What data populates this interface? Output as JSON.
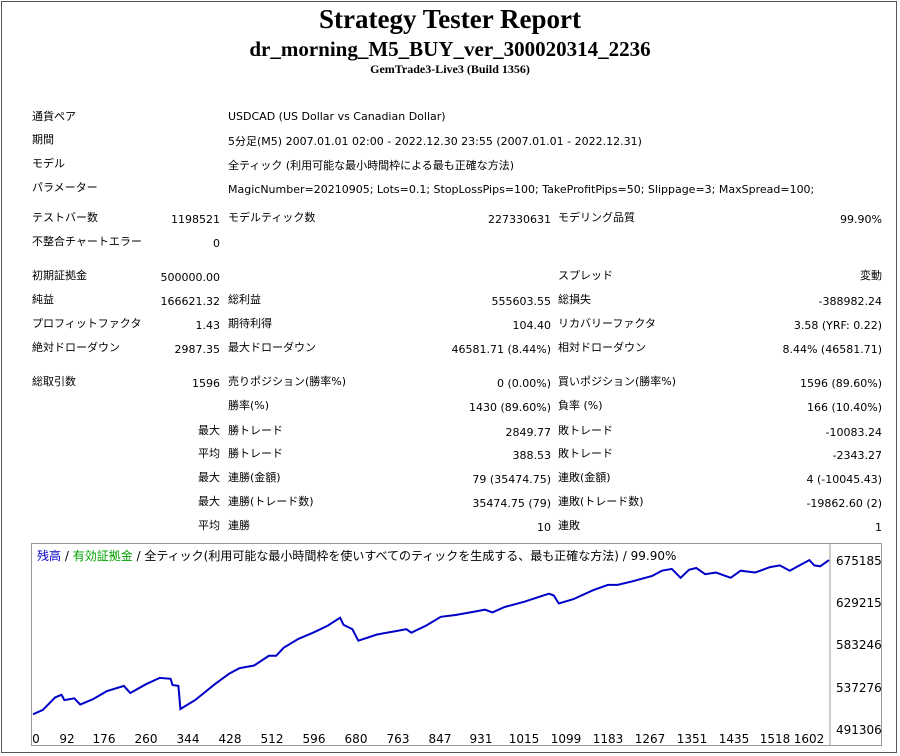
{
  "report": {
    "title": "Strategy Tester Report",
    "ea_name": "dr_morning_M5_BUY_ver_300020314_2236",
    "server": "GemTrade3-Live3 (Build 1356)"
  },
  "settings": [
    {
      "label": "通貨ペア",
      "value": "USDCAD (US Dollar vs Canadian Dollar)"
    },
    {
      "label": "期間",
      "value": "5分足(M5) 2007.01.01 02:00 - 2022.12.30 23:55 (2007.01.01 - 2022.12.31)"
    },
    {
      "label": "モデル",
      "value": "全ティック (利用可能な最小時間枠による最も正確な方法)"
    },
    {
      "label": "パラメーター",
      "value": "MagicNumber=20210905; Lots=0.1; StopLossPips=100; TakeProfitPips=50; Slippage=3; MaxSpread=100;"
    }
  ],
  "stats": {
    "bars_label": "テストバー数",
    "bars": "1198521",
    "ticks_label": "モデルティック数",
    "ticks": "227330631",
    "quality_label": "モデリング品質",
    "quality": "99.90%",
    "errors_label": "不整合チャートエラー",
    "errors": "0",
    "deposit_label": "初期証拠金",
    "deposit": "500000.00",
    "spread_label": "スプレッド",
    "spread": "変動",
    "net_label": "純益",
    "net": "166621.32",
    "gross_profit_label": "総利益",
    "gross_profit": "555603.55",
    "gross_loss_label": "総損失",
    "gross_loss": "-388982.24",
    "pf_label": "プロフィットファクタ",
    "pf": "1.43",
    "expected_label": "期待利得",
    "expected": "104.40",
    "recovery_label": "リカバリーファクタ",
    "recovery": "3.58 (YRF: 0.22)",
    "abs_dd_label": "絶対ドローダウン",
    "abs_dd": "2987.35",
    "max_dd_label": "最大ドローダウン",
    "max_dd": "46581.71 (8.44%)",
    "rel_dd_label": "相対ドローダウン",
    "rel_dd": "8.44% (46581.71)",
    "trades_label": "総取引数",
    "trades": "1596",
    "short_label": "売りポジション(勝率%)",
    "short": "0 (0.00%)",
    "long_label": "買いポジション(勝率%)",
    "long": "1596 (89.60%)",
    "win_pct_label": "勝率(%)",
    "win_pct": "1430 (89.60%)",
    "loss_pct_label": "負率 (%)",
    "loss_pct": "166 (10.40%)",
    "max_prefix": "最大",
    "avg_prefix": "平均",
    "max_win_label": "勝トレード",
    "max_win": "2849.77",
    "max_loss_label": "敗トレード",
    "max_loss": "-10083.24",
    "avg_win_label": "勝トレード",
    "avg_win": "388.53",
    "avg_loss_label": "敗トレード",
    "avg_loss": "-2343.27",
    "max_consec_win_amt_label": "連勝(金額)",
    "max_consec_win_amt": "79 (35474.75)",
    "max_consec_loss_amt_label": "連敗(金額)",
    "max_consec_loss_amt": "4 (-10045.43)",
    "max_consec_win_tr_label": "連勝(トレード数)",
    "max_consec_win_tr": "35474.75 (79)",
    "max_consec_loss_tr_label": "連敗(トレード数)",
    "max_consec_loss_tr": "-19862.60 (2)",
    "avg_consec_win_label": "連勝",
    "avg_consec_win": "10",
    "avg_consec_loss_label": "連敗",
    "avg_consec_loss": "1"
  },
  "legend": {
    "balance": "残高",
    "sep1": " / ",
    "equity": "有効証拠金",
    "sep2": " / ",
    "desc": "全ティック(利用可能な最小時間枠を使いすべてのティックを生成する、最も正確な方法) / 99.90%",
    "balance_color": "#0000c8",
    "equity_color": "#00a000"
  },
  "chart_data": {
    "type": "line",
    "series": [
      {
        "values": [
          [
            0,
            500000
          ],
          [
            20,
            505000
          ],
          [
            45,
            519000
          ],
          [
            58,
            522000
          ],
          [
            64,
            516000
          ],
          [
            84,
            518000
          ],
          [
            96,
            511000
          ],
          [
            122,
            517000
          ],
          [
            150,
            526000
          ],
          [
            185,
            532000
          ],
          [
            198,
            524000
          ],
          [
            230,
            534000
          ],
          [
            258,
            541000
          ],
          [
            280,
            540000
          ],
          [
            284,
            533000
          ],
          [
            296,
            532000
          ],
          [
            300,
            506000
          ],
          [
            330,
            516000
          ],
          [
            370,
            534000
          ],
          [
            400,
            546000
          ],
          [
            420,
            552000
          ],
          [
            450,
            555000
          ],
          [
            480,
            566000
          ],
          [
            495,
            566000
          ],
          [
            510,
            575000
          ],
          [
            540,
            585000
          ],
          [
            570,
            592000
          ],
          [
            600,
            600000
          ],
          [
            625,
            609000
          ],
          [
            632,
            601000
          ],
          [
            650,
            596000
          ],
          [
            662,
            583000
          ],
          [
            700,
            590000
          ],
          [
            740,
            594000
          ],
          [
            760,
            596000
          ],
          [
            770,
            592000
          ],
          [
            800,
            600000
          ],
          [
            830,
            610000
          ],
          [
            860,
            612000
          ],
          [
            900,
            616000
          ],
          [
            920,
            618000
          ],
          [
            935,
            615000
          ],
          [
            960,
            621000
          ],
          [
            1000,
            627000
          ],
          [
            1050,
            636000
          ],
          [
            1060,
            634000
          ],
          [
            1070,
            625000
          ],
          [
            1100,
            630000
          ],
          [
            1140,
            640000
          ],
          [
            1170,
            646000
          ],
          [
            1190,
            646000
          ],
          [
            1220,
            650000
          ],
          [
            1260,
            656000
          ],
          [
            1280,
            662000
          ],
          [
            1300,
            664000
          ],
          [
            1318,
            654000
          ],
          [
            1335,
            663000
          ],
          [
            1350,
            665000
          ],
          [
            1368,
            658000
          ],
          [
            1390,
            660000
          ],
          [
            1420,
            654000
          ],
          [
            1440,
            662000
          ],
          [
            1470,
            660000
          ],
          [
            1500,
            666000
          ],
          [
            1520,
            668000
          ],
          [
            1540,
            662000
          ],
          [
            1560,
            668000
          ],
          [
            1580,
            674000
          ],
          [
            1590,
            668000
          ],
          [
            1602,
            667000
          ],
          [
            1620,
            674000
          ]
        ]
      }
    ],
    "x_ticks": [
      "0",
      "92",
      "176",
      "260",
      "344",
      "428",
      "512",
      "596",
      "680",
      "763",
      "847",
      "931",
      "1015",
      "1099",
      "1183",
      "1267",
      "1351",
      "1435",
      "1518",
      "1602"
    ],
    "y_ticks": [
      "675185",
      "629215",
      "583246",
      "537276",
      "491306"
    ],
    "xlim": [
      0,
      1620
    ],
    "ylim": [
      491306,
      675185
    ],
    "grid": false
  }
}
